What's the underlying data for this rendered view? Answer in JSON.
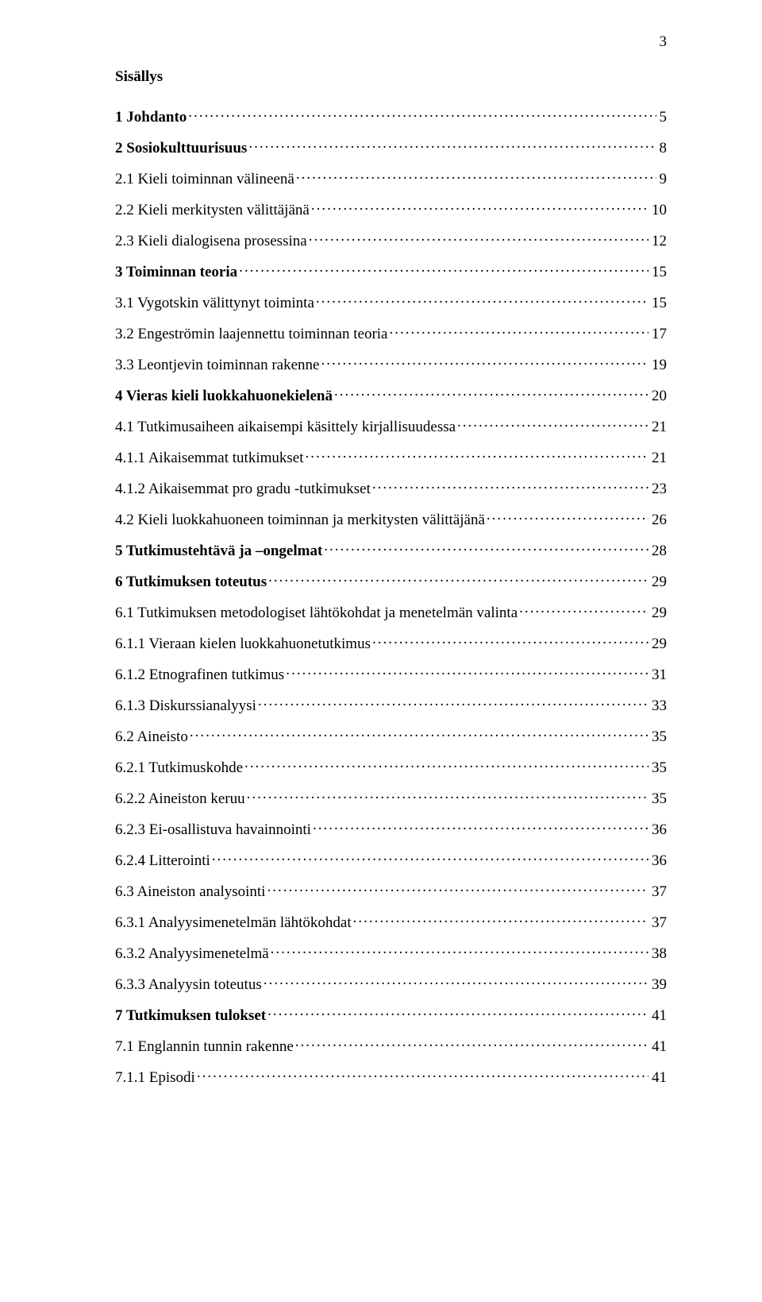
{
  "page_number": "3",
  "title": "Sisällys",
  "text_color": "#000000",
  "background_color": "#ffffff",
  "font_family": "Times New Roman",
  "base_fontsize_pt": 14,
  "entries": [
    {
      "label": "1 Johdanto",
      "page": "5",
      "bold": true
    },
    {
      "label": "2 Sosiokulttuurisuus",
      "page": "8",
      "bold": true
    },
    {
      "label": "2.1 Kieli toiminnan välineenä",
      "page": "9",
      "bold": false
    },
    {
      "label": "2.2 Kieli merkitysten välittäjänä",
      "page": "10",
      "bold": false
    },
    {
      "label": "2.3 Kieli dialogisena prosessina",
      "page": "12",
      "bold": false
    },
    {
      "label": "3 Toiminnan teoria",
      "page": "15",
      "bold": true
    },
    {
      "label": "3.1 Vygotskin välittynyt toiminta",
      "page": "15",
      "bold": false
    },
    {
      "label": "3.2 Engeströmin laajennettu toiminnan teoria",
      "page": "17",
      "bold": false
    },
    {
      "label": "3.3 Leontjevin toiminnan rakenne",
      "page": "19",
      "bold": false
    },
    {
      "label": "4 Vieras kieli luokkahuonekielenä",
      "page": "20",
      "bold": true
    },
    {
      "label": "4.1 Tutkimusaiheen aikaisempi käsittely kirjallisuudessa",
      "page": "21",
      "bold": false
    },
    {
      "label": "4.1.1 Aikaisemmat tutkimukset",
      "page": "21",
      "bold": false
    },
    {
      "label": "4.1.2 Aikaisemmat pro gradu -tutkimukset",
      "page": "23",
      "bold": false
    },
    {
      "label": "4.2 Kieli luokkahuoneen toiminnan ja merkitysten välittäjänä",
      "page": "26",
      "bold": false
    },
    {
      "label": "5 Tutkimustehtävä ja –ongelmat",
      "page": "28",
      "bold": true
    },
    {
      "label": "6 Tutkimuksen toteutus",
      "page": "29",
      "bold": true
    },
    {
      "label": "6.1 Tutkimuksen metodologiset lähtökohdat ja menetelmän valinta",
      "page": "29",
      "bold": false
    },
    {
      "label": "6.1.1 Vieraan kielen luokkahuonetutkimus",
      "page": "29",
      "bold": false
    },
    {
      "label": "6.1.2 Etnografinen tutkimus",
      "page": "31",
      "bold": false
    },
    {
      "label": "6.1.3 Diskurssianalyysi",
      "page": "33",
      "bold": false
    },
    {
      "label": "6.2 Aineisto",
      "page": "35",
      "bold": false
    },
    {
      "label": "6.2.1 Tutkimuskohde",
      "page": "35",
      "bold": false
    },
    {
      "label": "6.2.2 Aineiston keruu",
      "page": "35",
      "bold": false
    },
    {
      "label": "6.2.3 Ei-osallistuva havainnointi",
      "page": "36",
      "bold": false
    },
    {
      "label": "6.2.4 Litterointi",
      "page": "36",
      "bold": false
    },
    {
      "label": "6.3 Aineiston analysointi",
      "page": "37",
      "bold": false
    },
    {
      "label": "6.3.1 Analyysimenetelmän lähtökohdat",
      "page": "37",
      "bold": false
    },
    {
      "label": "6.3.2 Analyysimenetelmä",
      "page": "38",
      "bold": false
    },
    {
      "label": "6.3.3 Analyysin toteutus",
      "page": "39",
      "bold": false
    },
    {
      "label": "7 Tutkimuksen tulokset",
      "page": "41",
      "bold": true
    },
    {
      "label": "7.1 Englannin tunnin rakenne",
      "page": "41",
      "bold": false
    },
    {
      "label": "7.1.1 Episodi",
      "page": "41",
      "bold": false
    }
  ]
}
